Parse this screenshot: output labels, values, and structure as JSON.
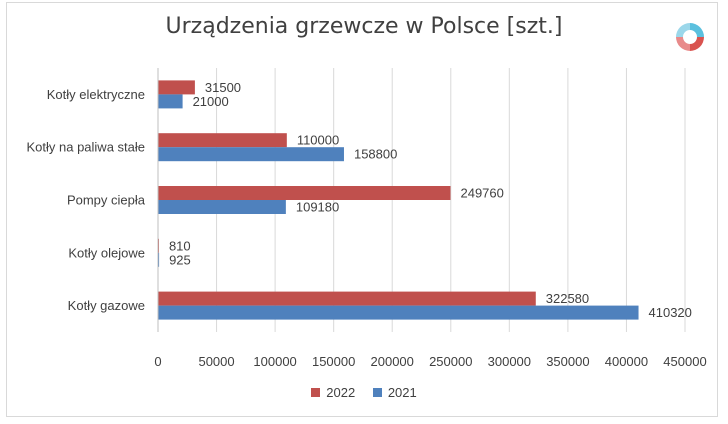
{
  "colors": {
    "2022": "#c0504d",
    "2021": "#4f81bd"
  },
  "chart_data": {
    "type": "bar",
    "orientation": "horizontal",
    "title": "Urządzenia grzewcze w Polsce [szt.]",
    "categories": [
      "Kotły elektryczne",
      "Kotły na paliwa stałe",
      "Pompy ciepła",
      "Kotły olejowe",
      "Kotły gazowe"
    ],
    "series": [
      {
        "name": "2022",
        "values": [
          31500,
          110000,
          249760,
          810,
          322580
        ]
      },
      {
        "name": "2021",
        "values": [
          21000,
          158800,
          109180,
          925,
          410320
        ]
      }
    ],
    "xlim": [
      0,
      450000
    ],
    "xticks": [
      0,
      50000,
      100000,
      150000,
      200000,
      250000,
      300000,
      350000,
      400000,
      450000
    ],
    "grid": true,
    "legend_position": "bottom"
  },
  "logo": {
    "icon": "circular-arrows-logo-icon"
  }
}
